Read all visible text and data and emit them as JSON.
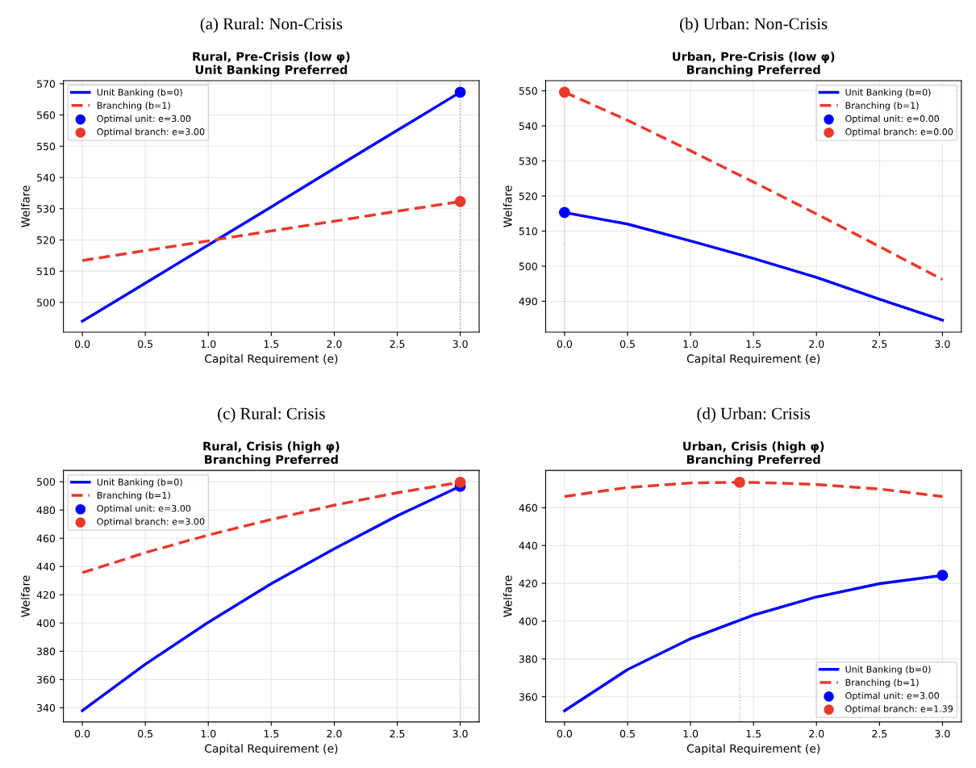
{
  "chart_data": [
    {
      "type": "line",
      "subtitle": "(a) Rural: Non-Crisis",
      "title": "Rural, Pre-Crisis (low φ)\nUnit Banking Preferred",
      "xlabel": "Capital Requirement (e)",
      "ylabel": "Welfare",
      "xlim": [
        -0.15,
        3.15
      ],
      "xticks": [
        {
          "value": 0,
          "label": "0.0"
        },
        0.5,
        {
          "value": 1,
          "label": "1.0"
        },
        1.5,
        {
          "value": 2,
          "label": "2.0"
        },
        2.5,
        {
          "value": 3,
          "label": "3.0"
        }
      ],
      "ylim": [
        490.5,
        571
      ],
      "yticks": [
        500,
        510,
        520,
        530,
        540,
        550,
        560,
        570
      ],
      "grid": true,
      "legend": "top left",
      "ref_lines": [
        {
          "axis": "x",
          "value": 3,
          "color": "#8f8fff",
          "line_style": "dotted"
        }
      ],
      "series": [
        {
          "name": "Unit Banking (b=0)",
          "type": "line",
          "color": "#0000ff",
          "line_style": "solid",
          "marker": "none",
          "x": [
            0,
            0.5,
            1,
            1.5,
            2,
            2.5,
            3
          ],
          "values": [
            494,
            506.2,
            518.4,
            530.6,
            542.9,
            555.1,
            567.3
          ]
        },
        {
          "name": "Branching (b=1)",
          "type": "line",
          "color": "#e8392b",
          "line_style": "dashed",
          "marker": "none",
          "x": [
            0,
            0.5,
            1,
            1.5,
            2,
            2.5,
            3
          ],
          "values": [
            513.4,
            516.6,
            519.7,
            522.9,
            526.0,
            529.2,
            532.3
          ]
        },
        {
          "name": "Optimal unit: e=3.00",
          "type": "scatter",
          "color": "#0000ff",
          "marker": "circle",
          "x": [
            3
          ],
          "values": [
            567.3
          ]
        },
        {
          "name": "Optimal branch: e=3.00",
          "type": "scatter",
          "color": "#e8392b",
          "marker": "circle",
          "x": [
            3
          ],
          "values": [
            532.3
          ]
        }
      ]
    },
    {
      "type": "line",
      "subtitle": "(b) Urban: Non-Crisis",
      "title": "Urban, Pre-Crisis (low φ)\nBranching Preferred",
      "xlabel": "Capital Requirement (e)",
      "ylabel": "Welfare",
      "xlim": [
        -0.15,
        3.15
      ],
      "xticks": [
        {
          "value": 0,
          "label": "0.0"
        },
        0.5,
        {
          "value": 1,
          "label": "1.0"
        },
        1.5,
        {
          "value": 2,
          "label": "2.0"
        },
        2.5,
        {
          "value": 3,
          "label": "3.0"
        }
      ],
      "ylim": [
        481.2,
        552.9
      ],
      "yticks": [
        490,
        500,
        510,
        520,
        530,
        540,
        550
      ],
      "grid": true,
      "legend": "top right",
      "ref_lines": [
        {
          "axis": "x",
          "value": 0,
          "color": "#f2a0a0",
          "line_style": "dotted"
        }
      ],
      "series": [
        {
          "name": "Unit Banking (b=0)",
          "type": "line",
          "color": "#0000ff",
          "line_style": "solid",
          "marker": "none",
          "x": [
            0,
            0.5,
            1,
            1.5,
            2,
            2.5,
            3
          ],
          "values": [
            515.3,
            512.0,
            507.2,
            502.2,
            496.8,
            490.6,
            484.6
          ]
        },
        {
          "name": "Branching (b=1)",
          "type": "line",
          "color": "#e8392b",
          "line_style": "dashed",
          "marker": "none",
          "x": [
            0,
            0.5,
            1,
            1.5,
            2,
            2.5,
            3
          ],
          "values": [
            549.6,
            541.6,
            532.9,
            524.0,
            514.9,
            505.6,
            496.2
          ]
        },
        {
          "name": "Optimal unit: e=0.00",
          "type": "scatter",
          "color": "#0000ff",
          "marker": "circle",
          "x": [
            0
          ],
          "values": [
            515.3
          ]
        },
        {
          "name": "Optimal branch: e=0.00",
          "type": "scatter",
          "color": "#e8392b",
          "marker": "circle",
          "x": [
            0
          ],
          "values": [
            549.6
          ]
        }
      ]
    },
    {
      "type": "line",
      "subtitle": "(c) Rural: Crisis",
      "title": "Rural, Crisis (high φ)\nBranching Preferred",
      "xlabel": "Capital Requirement (e)",
      "ylabel": "Welfare",
      "xlim": [
        -0.15,
        3.15
      ],
      "xticks": [
        {
          "value": 0,
          "label": "0.0"
        },
        0.5,
        {
          "value": 1,
          "label": "1.0"
        },
        1.5,
        {
          "value": 2,
          "label": "2.0"
        },
        2.5,
        {
          "value": 3,
          "label": "3.0"
        }
      ],
      "ylim": [
        330,
        508
      ],
      "yticks": [
        340,
        360,
        380,
        400,
        420,
        440,
        460,
        480,
        500
      ],
      "grid": true,
      "legend": "top left",
      "ref_lines": [
        {
          "axis": "x",
          "value": 3,
          "color": "#f2a0a0",
          "line_style": "dotted"
        }
      ],
      "series": [
        {
          "name": "Unit Banking (b=0)",
          "type": "line",
          "color": "#0000ff",
          "line_style": "solid",
          "marker": "none",
          "x": [
            0,
            0.5,
            1,
            1.5,
            2,
            2.5,
            3
          ],
          "values": [
            338,
            370.8,
            400.5,
            427.9,
            452.6,
            475.9,
            496.8
          ]
        },
        {
          "name": "Branching (b=1)",
          "type": "line",
          "color": "#e8392b",
          "line_style": "dashed",
          "marker": "none",
          "x": [
            0,
            0.5,
            1,
            1.5,
            2,
            2.5,
            3
          ],
          "values": [
            435.6,
            449.8,
            462.3,
            473.3,
            483.4,
            492.2,
            499.6
          ]
        },
        {
          "name": "Optimal unit: e=3.00",
          "type": "scatter",
          "color": "#0000ff",
          "marker": "circle",
          "x": [
            3
          ],
          "values": [
            496.8
          ]
        },
        {
          "name": "Optimal branch: e=3.00",
          "type": "scatter",
          "color": "#e8392b",
          "marker": "circle",
          "x": [
            3
          ],
          "values": [
            499.6
          ]
        }
      ]
    },
    {
      "type": "line",
      "subtitle": "(d) Urban: Crisis",
      "title": "Urban, Crisis (high φ)\nBranching Preferred",
      "xlabel": "Capital Requirement (e)",
      "ylabel": "Welfare",
      "xlim": [
        -0.15,
        3.15
      ],
      "xticks": [
        {
          "value": 0,
          "label": "0.0"
        },
        0.5,
        {
          "value": 1,
          "label": "1.0"
        },
        1.5,
        {
          "value": 2,
          "label": "2.0"
        },
        2.5,
        {
          "value": 3,
          "label": "3.0"
        }
      ],
      "ylim": [
        346.7,
        479.7
      ],
      "yticks": [
        360,
        380,
        400,
        420,
        440,
        460
      ],
      "grid": true,
      "legend": "bottom right",
      "ref_lines": [
        {
          "axis": "x",
          "value": 1.39,
          "color": "#f2a0a0",
          "line_style": "dotted"
        }
      ],
      "series": [
        {
          "name": "Unit Banking (b=0)",
          "type": "line",
          "color": "#0000ff",
          "line_style": "solid",
          "marker": "none",
          "x": [
            0,
            0.5,
            1,
            1.5,
            2,
            2.5,
            3
          ],
          "values": [
            352.6,
            374.4,
            390.7,
            403.2,
            412.8,
            419.8,
            424.2
          ]
        },
        {
          "name": "Branching (b=1)",
          "type": "line",
          "color": "#e8392b",
          "line_style": "dashed",
          "marker": "none",
          "x": [
            0,
            0.5,
            1,
            1.39,
            1.5,
            2,
            2.5,
            3
          ],
          "values": [
            465.9,
            470.7,
            473.1,
            473.4,
            473.4,
            472.3,
            469.9,
            465.9
          ]
        },
        {
          "name": "Optimal unit: e=3.00",
          "type": "scatter",
          "color": "#0000ff",
          "marker": "circle",
          "x": [
            3
          ],
          "values": [
            424.2
          ]
        },
        {
          "name": "Optimal branch: e=1.39",
          "type": "scatter",
          "color": "#e8392b",
          "marker": "circle",
          "x": [
            1.39
          ],
          "values": [
            473.4
          ]
        }
      ]
    }
  ]
}
